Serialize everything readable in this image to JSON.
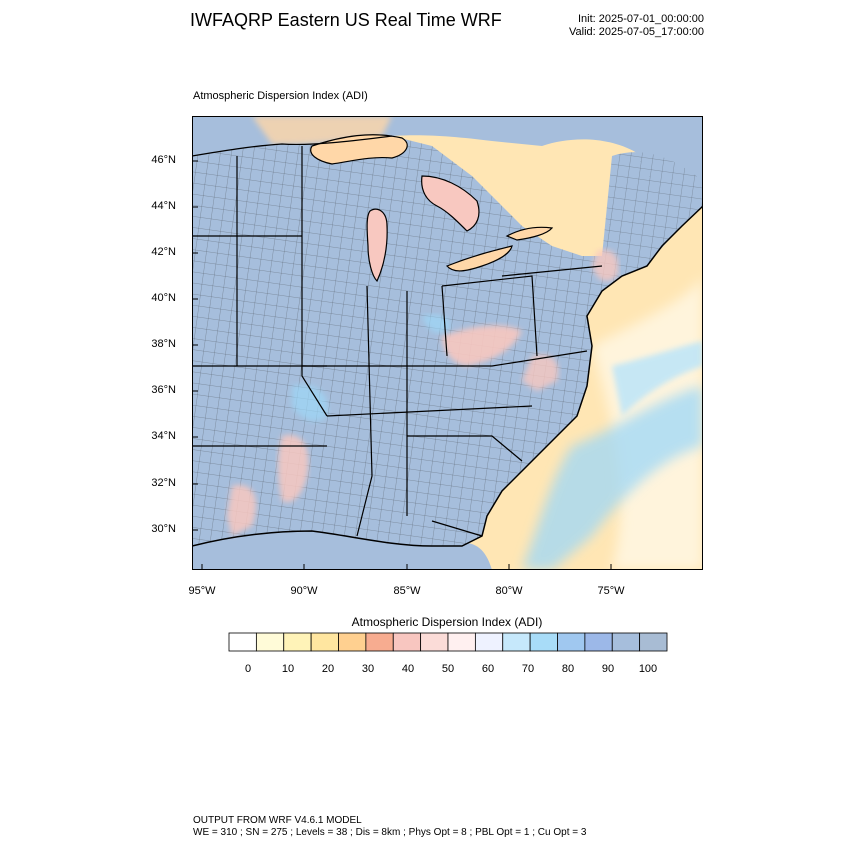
{
  "title": "IWFAQRP Eastern US Real Time WRF",
  "init": "Init: 2025-07-01_00:00:00",
  "valid": "Valid: 2025-07-05_17:00:00",
  "panel_title": "Atmospheric Dispersion Index   (ADI)",
  "lat_labels": [
    "46°N",
    "44°N",
    "42°N",
    "40°N",
    "38°N",
    "36°N",
    "34°N",
    "32°N",
    "30°N"
  ],
  "lon_labels": [
    "95°W",
    "90°W",
    "85°W",
    "80°W",
    "75°W"
  ],
  "colorbar": {
    "title": "Atmospheric Dispersion Index  (ADI)",
    "labels": [
      "0",
      "10",
      "20",
      "30",
      "40",
      "50",
      "60",
      "70",
      "80",
      "90",
      "100"
    ],
    "colors": [
      "#ffffff",
      "#fffbd8",
      "#fff3b8",
      "#ffe6a0",
      "#ffd090",
      "#f7ac90",
      "#f8c6c0",
      "#fbdcd8",
      "#fff0f0",
      "#eef2ff",
      "#c6e8fb",
      "#a8dcf8",
      "#a0c8f0",
      "#9cb8e8",
      "#a6bedc",
      "#a8bcd4"
    ]
  },
  "colors": {
    "land_main": "#a6bedc",
    "ocean_calm": "#ffe6b4",
    "ocean_pale": "#fff4dc",
    "bright_blue": "#9ed8f8",
    "salmon": "#f8c8c0",
    "lake_orange": "#ffd7a8"
  },
  "footer": {
    "line1": "OUTPUT FROM WRF V4.6.1 MODEL",
    "line2": "WE = 310 ; SN = 275 ; Levels = 38 ; Dis = 8km ; Phys Opt = 8 ; PBL Opt = 1 ; Cu Opt = 3"
  }
}
